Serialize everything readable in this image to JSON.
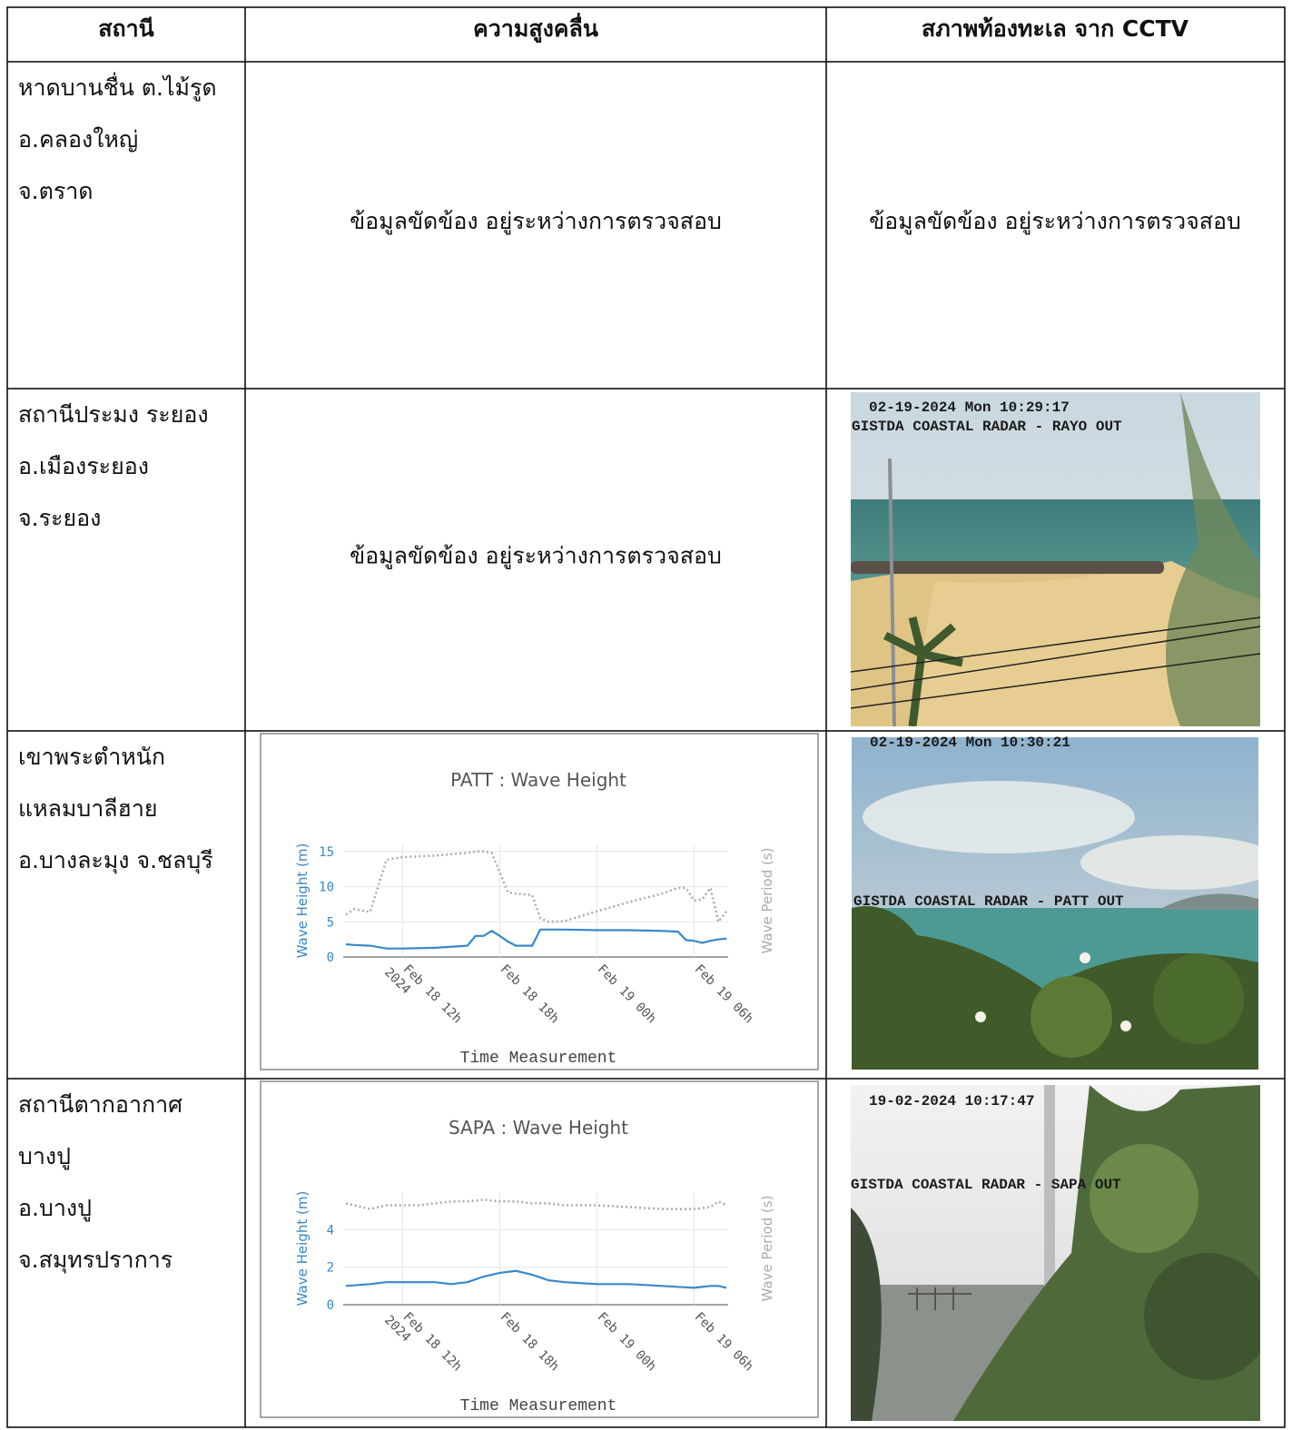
{
  "table": {
    "headers": [
      "สถานี",
      "ความสูงคลื่น",
      "สภาพท้องทะเล จาก CCTV"
    ],
    "rows": [
      {
        "station": [
          "หาดบานชื่น ต.ไม้รูด",
          "อ.คลองใหญ่",
          "จ.ตราด"
        ],
        "wave": "ข้อมูลขัดข้อง อยู่ระหว่างการตรวจสอบ",
        "cctv": "ข้อมูลขัดข้อง อยู่ระหว่างการตรวจสอบ"
      },
      {
        "station": [
          "สถานีประมง ระยอง",
          "อ.เมืองระยอง",
          "จ.ระยอง"
        ],
        "wave": "ข้อมูลขัดข้อง อยู่ระหว่างการตรวจสอบ",
        "cctv": {
          "timestamp": "02-19-2024 Mon 10:29:17",
          "caption": "GISTDA COASTAL RADAR - RAYO OUT"
        }
      },
      {
        "station": [
          "เขาพระตำหนัก",
          "แหลมบาลีฮาย",
          "อ.บางละมุง จ.ชลบุรี"
        ],
        "cctv": {
          "timestamp": "02-19-2024 Mon 10:30:21",
          "caption": "GISTDA COASTAL RADAR - PATT OUT"
        }
      },
      {
        "station": [
          "สถานีตากอากาศ",
          "บางปู",
          "อ.บางปู",
          "จ.สมุทรปราการ"
        ],
        "cctv": {
          "timestamp": "19-02-2024 10:17:47",
          "caption": "GISTDA COASTAL RADAR - SAPA OUT"
        }
      }
    ]
  },
  "chart_data": [
    {
      "type": "line",
      "title": "PATT : Wave Height",
      "ylabel": "Wave Height (m)",
      "y2label": "Wave Period (s)",
      "xlabel": "Time Measurement",
      "x": [
        "2024-02-18T08:30",
        "2024-02-18T09:00",
        "2024-02-18T10:00",
        "2024-02-18T11:00",
        "2024-02-18T12:00",
        "2024-02-18T14:00",
        "2024-02-18T16:00",
        "2024-02-18T16:30",
        "2024-02-18T17:00",
        "2024-02-18T17:30",
        "2024-02-18T18:00",
        "2024-02-18T18:30",
        "2024-02-18T19:00",
        "2024-02-18T20:00",
        "2024-02-18T20:30",
        "2024-02-18T21:00",
        "2024-02-18T22:00",
        "2024-02-19T00:00",
        "2024-02-19T02:00",
        "2024-02-19T04:00",
        "2024-02-19T05:00",
        "2024-02-19T05:30",
        "2024-02-19T06:00",
        "2024-02-19T06:30",
        "2024-02-19T07:00",
        "2024-02-19T07:30",
        "2024-02-19T08:00"
      ],
      "series": [
        {
          "color": "#3a87c8",
          "values": [
            1.8,
            1.7,
            1.6,
            1.2,
            1.2,
            1.3,
            1.6,
            3.0,
            3.0,
            3.7,
            3.0,
            2.2,
            1.6,
            1.6,
            3.9,
            3.9,
            3.9,
            3.8,
            3.8,
            3.7,
            3.6,
            2.4,
            2.3,
            2.0,
            2.3,
            2.5,
            2.6
          ]
        },
        {
          "color": "#aaaaaa",
          "axis": "y2",
          "style": "dotted",
          "values": [
            6.0,
            6.8,
            6.4,
            13.8,
            14.2,
            14.4,
            14.8,
            15.0,
            15.0,
            14.8,
            12,
            9.2,
            9.0,
            8.8,
            5.5,
            5.0,
            5.1,
            6.5,
            7.8,
            9.0,
            9.8,
            9.8,
            8.0,
            8.2,
            9.8,
            5.0,
            6.5
          ]
        }
      ],
      "xlim": [
        "2024-02-18T08:20",
        "2024-02-19T08:06"
      ],
      "xticks": [
        {
          "value": "2024-02-18T12:00",
          "label": "Feb 18 12h\n2024"
        },
        {
          "value": "2024-02-18T18:00",
          "label": "Feb 18 18h"
        },
        {
          "value": "2024-02-19T00:00",
          "label": "Feb 19 00h"
        },
        {
          "value": "2024-02-19T06:00",
          "label": "Feb 19 06h"
        }
      ],
      "ylim": [
        0,
        16
      ],
      "yticks": [
        0,
        5,
        10,
        15
      ],
      "y2lim": [
        0,
        16
      ],
      "grid": true
    },
    {
      "type": "line",
      "title": "SAPA : Wave Height",
      "ylabel": "Wave Height (m)",
      "y2label": "Wave Period (s)",
      "xlabel": "Time Measurement",
      "x": [
        "2024-02-18T08:30",
        "2024-02-18T10:00",
        "2024-02-18T11:00",
        "2024-02-18T12:00",
        "2024-02-18T13:00",
        "2024-02-18T14:00",
        "2024-02-18T15:00",
        "2024-02-18T16:00",
        "2024-02-18T17:00",
        "2024-02-18T18:00",
        "2024-02-18T19:00",
        "2024-02-18T20:00",
        "2024-02-18T21:00",
        "2024-02-18T22:00",
        "2024-02-19T00:00",
        "2024-02-19T02:00",
        "2024-02-19T04:00",
        "2024-02-19T06:00",
        "2024-02-19T07:00",
        "2024-02-19T07:30",
        "2024-02-19T08:00"
      ],
      "series": [
        {
          "color": "#3a87c8",
          "values": [
            1.0,
            1.1,
            1.2,
            1.2,
            1.2,
            1.2,
            1.1,
            1.2,
            1.5,
            1.7,
            1.8,
            1.6,
            1.3,
            1.2,
            1.1,
            1.1,
            1.0,
            0.9,
            1.0,
            1.0,
            0.9
          ]
        },
        {
          "color": "#aaaaaa",
          "axis": "y2",
          "style": "dotted",
          "values": [
            5.4,
            5.1,
            5.3,
            5.3,
            5.3,
            5.4,
            5.5,
            5.5,
            5.6,
            5.5,
            5.5,
            5.4,
            5.4,
            5.3,
            5.3,
            5.2,
            5.1,
            5.1,
            5.2,
            5.5,
            5.3
          ]
        }
      ],
      "xlim": [
        "2024-02-18T08:20",
        "2024-02-19T08:06"
      ],
      "xticks": [
        {
          "value": "2024-02-18T12:00",
          "label": "Feb 18 12h\n2024"
        },
        {
          "value": "2024-02-18T18:00",
          "label": "Feb 18 18h"
        },
        {
          "value": "2024-02-19T00:00",
          "label": "Feb 19 00h"
        },
        {
          "value": "2024-02-19T06:00",
          "label": "Feb 19 06h"
        }
      ],
      "ylim": [
        0,
        6
      ],
      "yticks": [
        0,
        2,
        4
      ],
      "y2lim": [
        0,
        6
      ],
      "grid": true
    }
  ]
}
